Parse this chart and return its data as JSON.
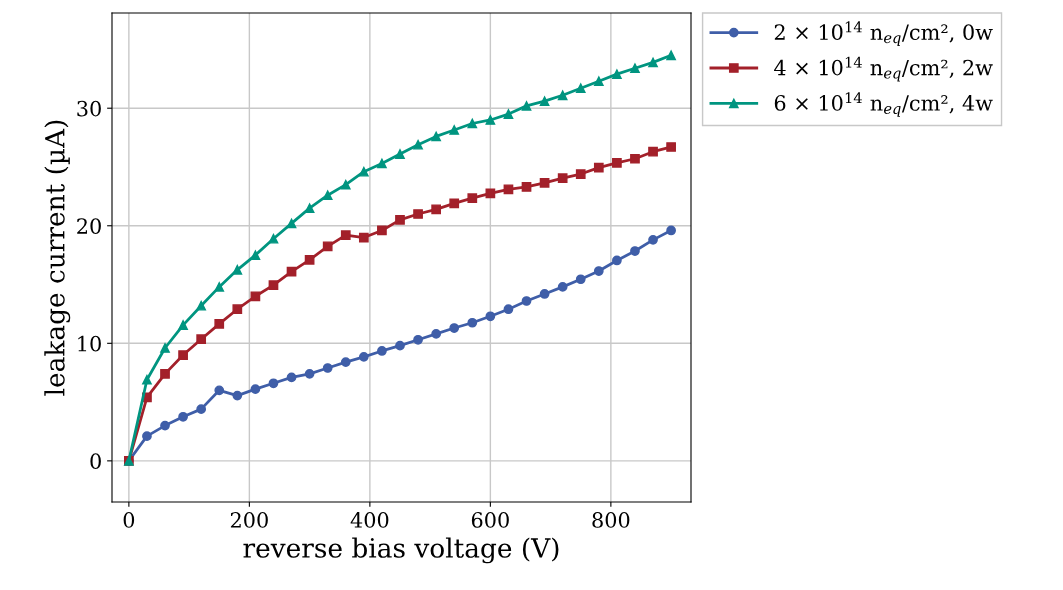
{
  "chart_data": {
    "type": "line",
    "xlabel": "reverse bias voltage (V)",
    "ylabel": "leakage current (µA)",
    "x": [
      0,
      30,
      60,
      90,
      120,
      150,
      180,
      210,
      240,
      270,
      300,
      330,
      360,
      390,
      420,
      450,
      480,
      510,
      540,
      570,
      600,
      630,
      660,
      690,
      720,
      750,
      780,
      810,
      840,
      870,
      900
    ],
    "series": [
      {
        "name": "2 × 10$^{14}$ n$_{eq}$/cm², 0w",
        "color": "#3f5ea8",
        "marker": "circle",
        "values": [
          0,
          2.1,
          3.0,
          3.75,
          4.4,
          6.0,
          5.55,
          6.1,
          6.6,
          7.1,
          7.4,
          7.9,
          8.4,
          8.85,
          9.35,
          9.8,
          10.3,
          10.8,
          11.3,
          11.75,
          12.3,
          12.9,
          13.6,
          14.2,
          14.8,
          15.45,
          16.15,
          17.05,
          17.85,
          18.8,
          19.6
        ]
      },
      {
        "name": "4 × 10$^{14}$ n$_{eq}$/cm², 2w",
        "color": "#a3202a",
        "marker": "square",
        "values": [
          0,
          5.4,
          7.4,
          9.0,
          10.35,
          11.65,
          12.9,
          14.0,
          14.95,
          16.1,
          17.1,
          18.25,
          19.2,
          19.0,
          19.6,
          20.5,
          21.0,
          21.4,
          21.9,
          22.35,
          22.75,
          23.1,
          23.3,
          23.65,
          24.05,
          24.4,
          24.95,
          25.35,
          25.7,
          26.3,
          26.7
        ]
      },
      {
        "name": "6 × 10$^{14}$ n$_{eq}$/cm², 4w",
        "color": "#009580",
        "marker": "triangle",
        "values": [
          0,
          6.9,
          9.6,
          11.55,
          13.2,
          14.8,
          16.25,
          17.5,
          18.9,
          20.2,
          21.5,
          22.6,
          23.5,
          24.6,
          25.3,
          26.1,
          26.9,
          27.6,
          28.15,
          28.7,
          29.0,
          29.5,
          30.2,
          30.6,
          31.1,
          31.7,
          32.3,
          32.9,
          33.4,
          33.9,
          34.5
        ]
      }
    ],
    "xlim": [
      -28,
      933
    ],
    "ylim": [
      -3.5,
      38.1
    ],
    "xticks": [
      0,
      200,
      400,
      600,
      800
    ],
    "yticks": [
      0,
      10,
      20,
      30
    ],
    "grid": true,
    "legend": "top right",
    "line_style": "solid"
  }
}
